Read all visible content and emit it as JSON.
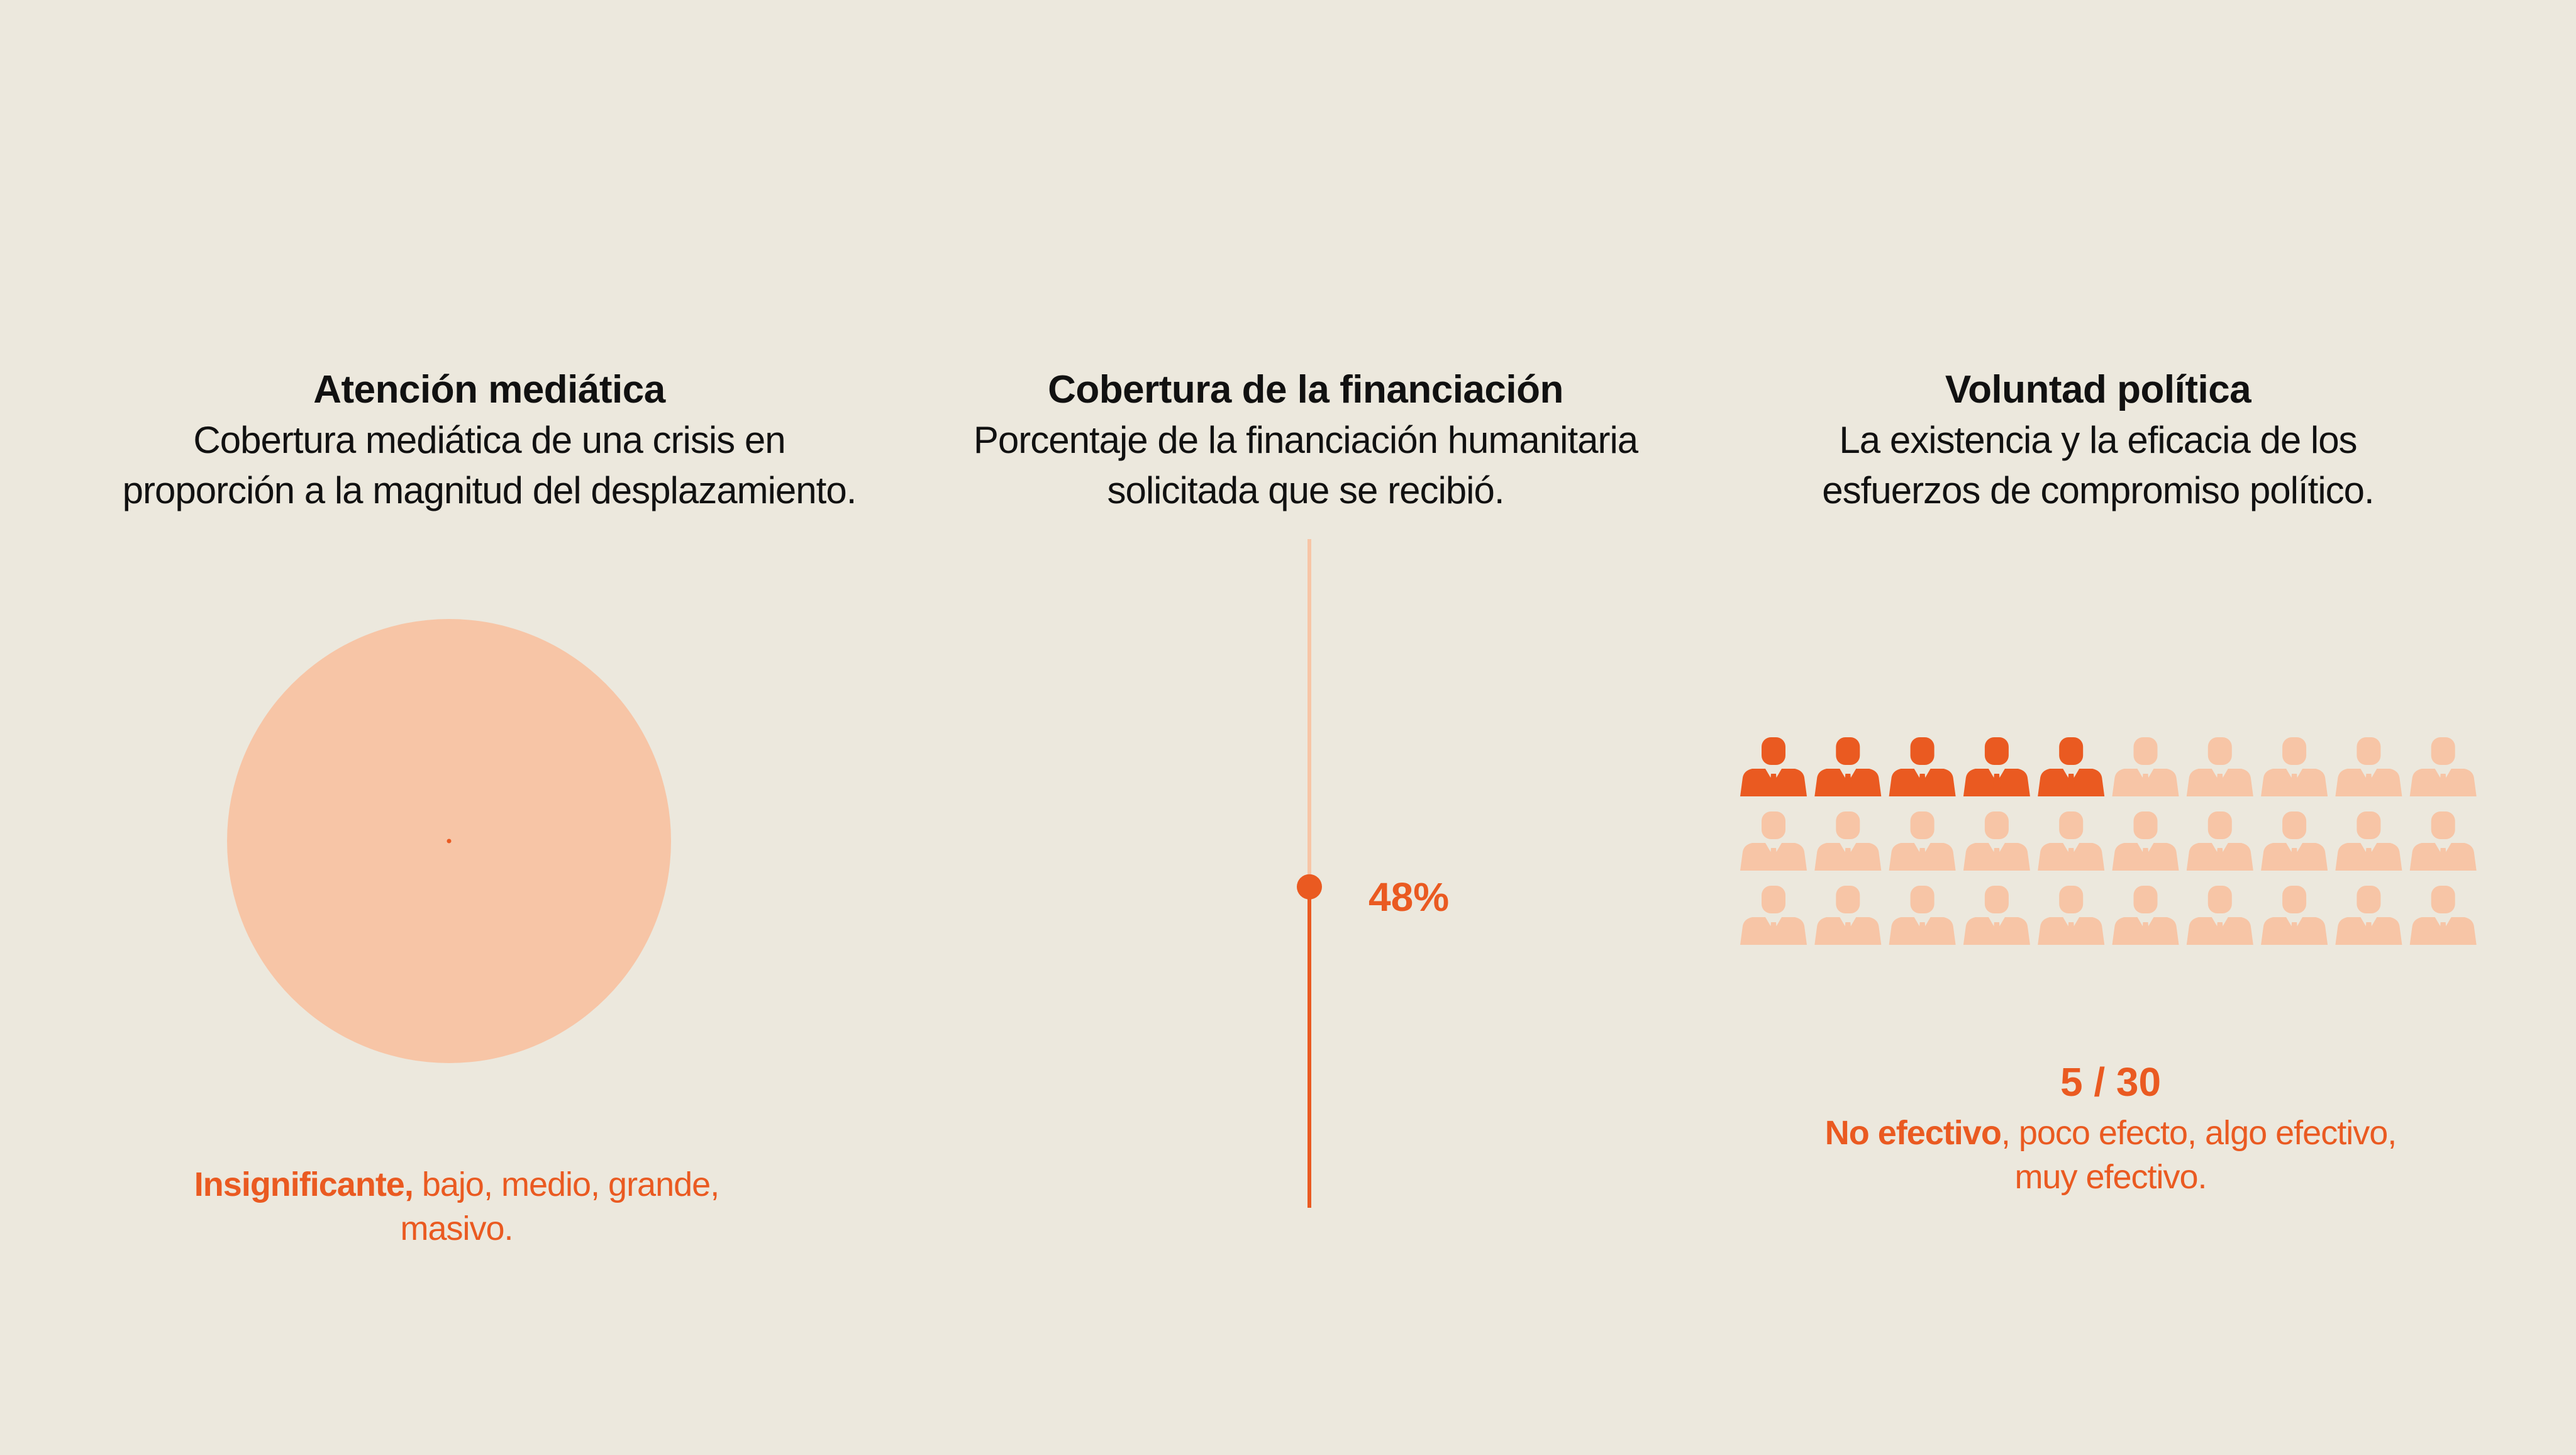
{
  "colors": {
    "background": "#ece8dd",
    "accent": "#ea5a21",
    "accent_light": "#f7c5a6",
    "text": "#111111"
  },
  "panels": {
    "media": {
      "title": "Atención mediática",
      "description_line1": "Cobertura mediática de una crisis en",
      "description_line2": "proporción a la magnitud del desplazamiento.",
      "scale_active": "Insignificante,",
      "scale_rest": " bajo, medio, grande,",
      "scale_line2": "masivo."
    },
    "funding": {
      "title": "Cobertura de la financiación",
      "description_line1": "Porcentaje de la financiación humanitaria",
      "description_line2": "solicitada que se recibió.",
      "value_label": "48%"
    },
    "political": {
      "title": "Voluntad política",
      "description_line1": "La existencia y la eficacia de los",
      "description_line2": "esfuerzos de compromiso político.",
      "score_label": "5 / 30",
      "scale_active": "No efectivo",
      "scale_rest": ", poco efecto, algo efectivo,",
      "scale_line2": "muy efectivo."
    }
  },
  "chart_data": [
    {
      "type": "bubble-comparison",
      "title": "Atención mediática",
      "scale_levels": [
        "Insignificante",
        "bajo",
        "medio",
        "grande",
        "masivo"
      ],
      "selected_level": "Insignificante",
      "reference_relative_size": 1.0,
      "actual_relative_size": 0.01
    },
    {
      "type": "progress",
      "title": "Cobertura de la financiación",
      "value_percent": 48,
      "range": [
        0,
        100
      ]
    },
    {
      "type": "pictogram",
      "title": "Voluntad política",
      "value": 5,
      "total": 30,
      "scale_levels": [
        "No efectivo",
        "poco efecto",
        "algo efectivo",
        "muy efectivo"
      ],
      "selected_level": "No efectivo"
    }
  ]
}
